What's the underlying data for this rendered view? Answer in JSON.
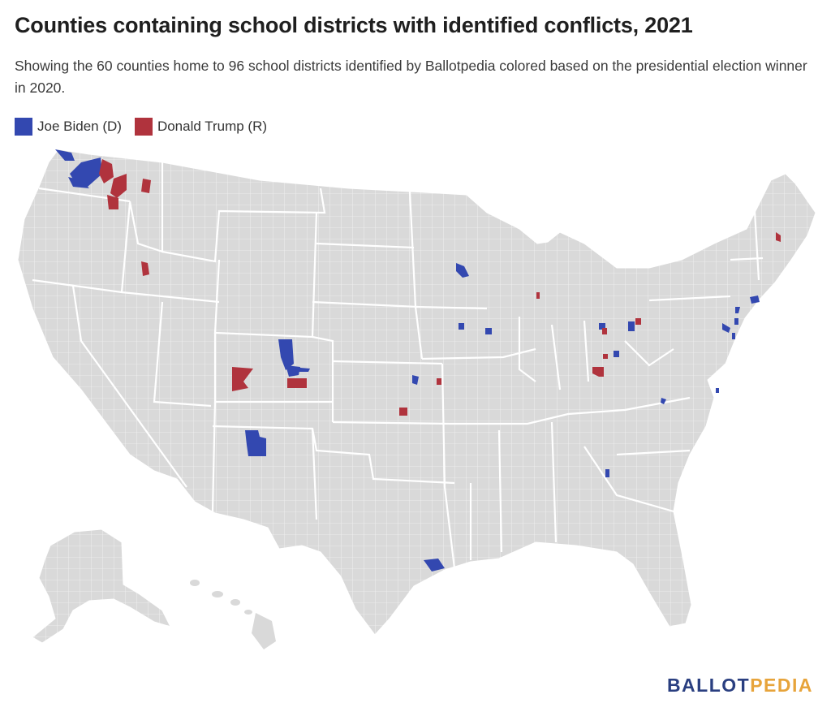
{
  "header": {
    "title": "Counties containing school districts with identified conflicts, 2021",
    "subtitle": "Showing the 60 counties home to 96 school districts identified by Ballotpedia colored based on the presidential election winner in 2020."
  },
  "legend": [
    {
      "label": "Joe Biden (D)",
      "color": "#3348b0"
    },
    {
      "label": "Donald Trump (R)",
      "color": "#b0333d"
    }
  ],
  "map": {
    "base_color": "#d9d9d9",
    "border_color": "#ffffff",
    "biden_color": "#3348b0",
    "trump_color": "#b0333d"
  },
  "logo": {
    "part1": "BALLOT",
    "part2": "PEDIA"
  }
}
